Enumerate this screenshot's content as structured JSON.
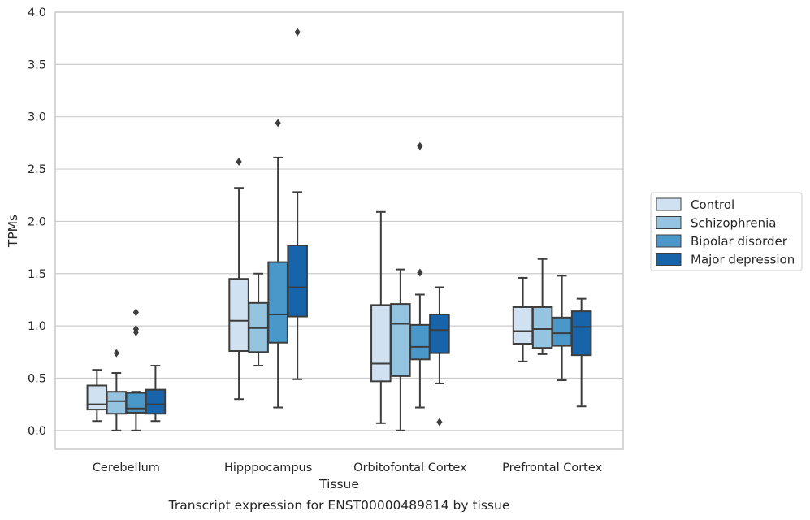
{
  "chart_data": {
    "type": "box",
    "title": "",
    "xlabel": "Tissue",
    "ylabel": "TPMs",
    "caption": "Transcript expression for ENST00000489814 by tissue",
    "ylim": [
      -0.18,
      4.0
    ],
    "yticks": [
      "0.0",
      "0.5",
      "1.0",
      "1.5",
      "2.0",
      "2.5",
      "3.0",
      "3.5",
      "4.0"
    ],
    "grid": "horizontal",
    "legend_position": "right",
    "categories": [
      "Cerebellum",
      "Hipppocampus",
      "Orbitofontal Cortex",
      "Prefrontal Cortex"
    ],
    "series": [
      {
        "name": "Control",
        "color": "#d0e1f2",
        "boxes": [
          {
            "whislo": 0.09,
            "q1": 0.2,
            "med": 0.25,
            "q3": 0.43,
            "whishi": 0.58,
            "fliers": []
          },
          {
            "whislo": 0.3,
            "q1": 0.76,
            "med": 1.05,
            "q3": 1.45,
            "whishi": 2.32,
            "fliers": [
              2.57
            ]
          },
          {
            "whislo": 0.07,
            "q1": 0.47,
            "med": 0.64,
            "q3": 1.2,
            "whishi": 2.09,
            "fliers": []
          },
          {
            "whislo": 0.66,
            "q1": 0.83,
            "med": 0.95,
            "q3": 1.18,
            "whishi": 1.46,
            "fliers": []
          }
        ]
      },
      {
        "name": "Schizophrenia",
        "color": "#94c4df",
        "boxes": [
          {
            "whislo": 0.0,
            "q1": 0.16,
            "med": 0.28,
            "q3": 0.37,
            "whishi": 0.55,
            "fliers": [
              0.74
            ]
          },
          {
            "whislo": 0.62,
            "q1": 0.75,
            "med": 0.98,
            "q3": 1.22,
            "whishi": 1.5,
            "fliers": []
          },
          {
            "whislo": 0.0,
            "q1": 0.52,
            "med": 1.02,
            "q3": 1.21,
            "whishi": 1.54,
            "fliers": []
          },
          {
            "whislo": 0.73,
            "q1": 0.79,
            "med": 0.97,
            "q3": 1.18,
            "whishi": 1.64,
            "fliers": []
          }
        ]
      },
      {
        "name": "Bipolar disorder",
        "color": "#4a98c9",
        "boxes": [
          {
            "whislo": 0.0,
            "q1": 0.17,
            "med": 0.21,
            "q3": 0.36,
            "whishi": 0.37,
            "fliers": [
              0.94,
              0.97,
              1.13
            ]
          },
          {
            "whislo": 0.22,
            "q1": 0.84,
            "med": 1.11,
            "q3": 1.61,
            "whishi": 2.61,
            "fliers": [
              2.94
            ]
          },
          {
            "whislo": 0.22,
            "q1": 0.68,
            "med": 0.8,
            "q3": 1.01,
            "whishi": 1.3,
            "fliers": [
              1.51,
              2.72
            ]
          },
          {
            "whislo": 0.48,
            "q1": 0.81,
            "med": 0.93,
            "q3": 1.08,
            "whishi": 1.48,
            "fliers": []
          }
        ]
      },
      {
        "name": "Major depression",
        "color": "#1764ab",
        "boxes": [
          {
            "whislo": 0.09,
            "q1": 0.16,
            "med": 0.25,
            "q3": 0.39,
            "whishi": 0.62,
            "fliers": []
          },
          {
            "whislo": 0.49,
            "q1": 1.09,
            "med": 1.37,
            "q3": 1.77,
            "whishi": 2.28,
            "fliers": [
              3.81
            ]
          },
          {
            "whislo": 0.45,
            "q1": 0.74,
            "med": 0.96,
            "q3": 1.11,
            "whishi": 1.37,
            "fliers": [
              0.08
            ]
          },
          {
            "whislo": 0.23,
            "q1": 0.72,
            "med": 0.99,
            "q3": 1.14,
            "whishi": 1.26,
            "fliers": []
          }
        ]
      }
    ]
  }
}
